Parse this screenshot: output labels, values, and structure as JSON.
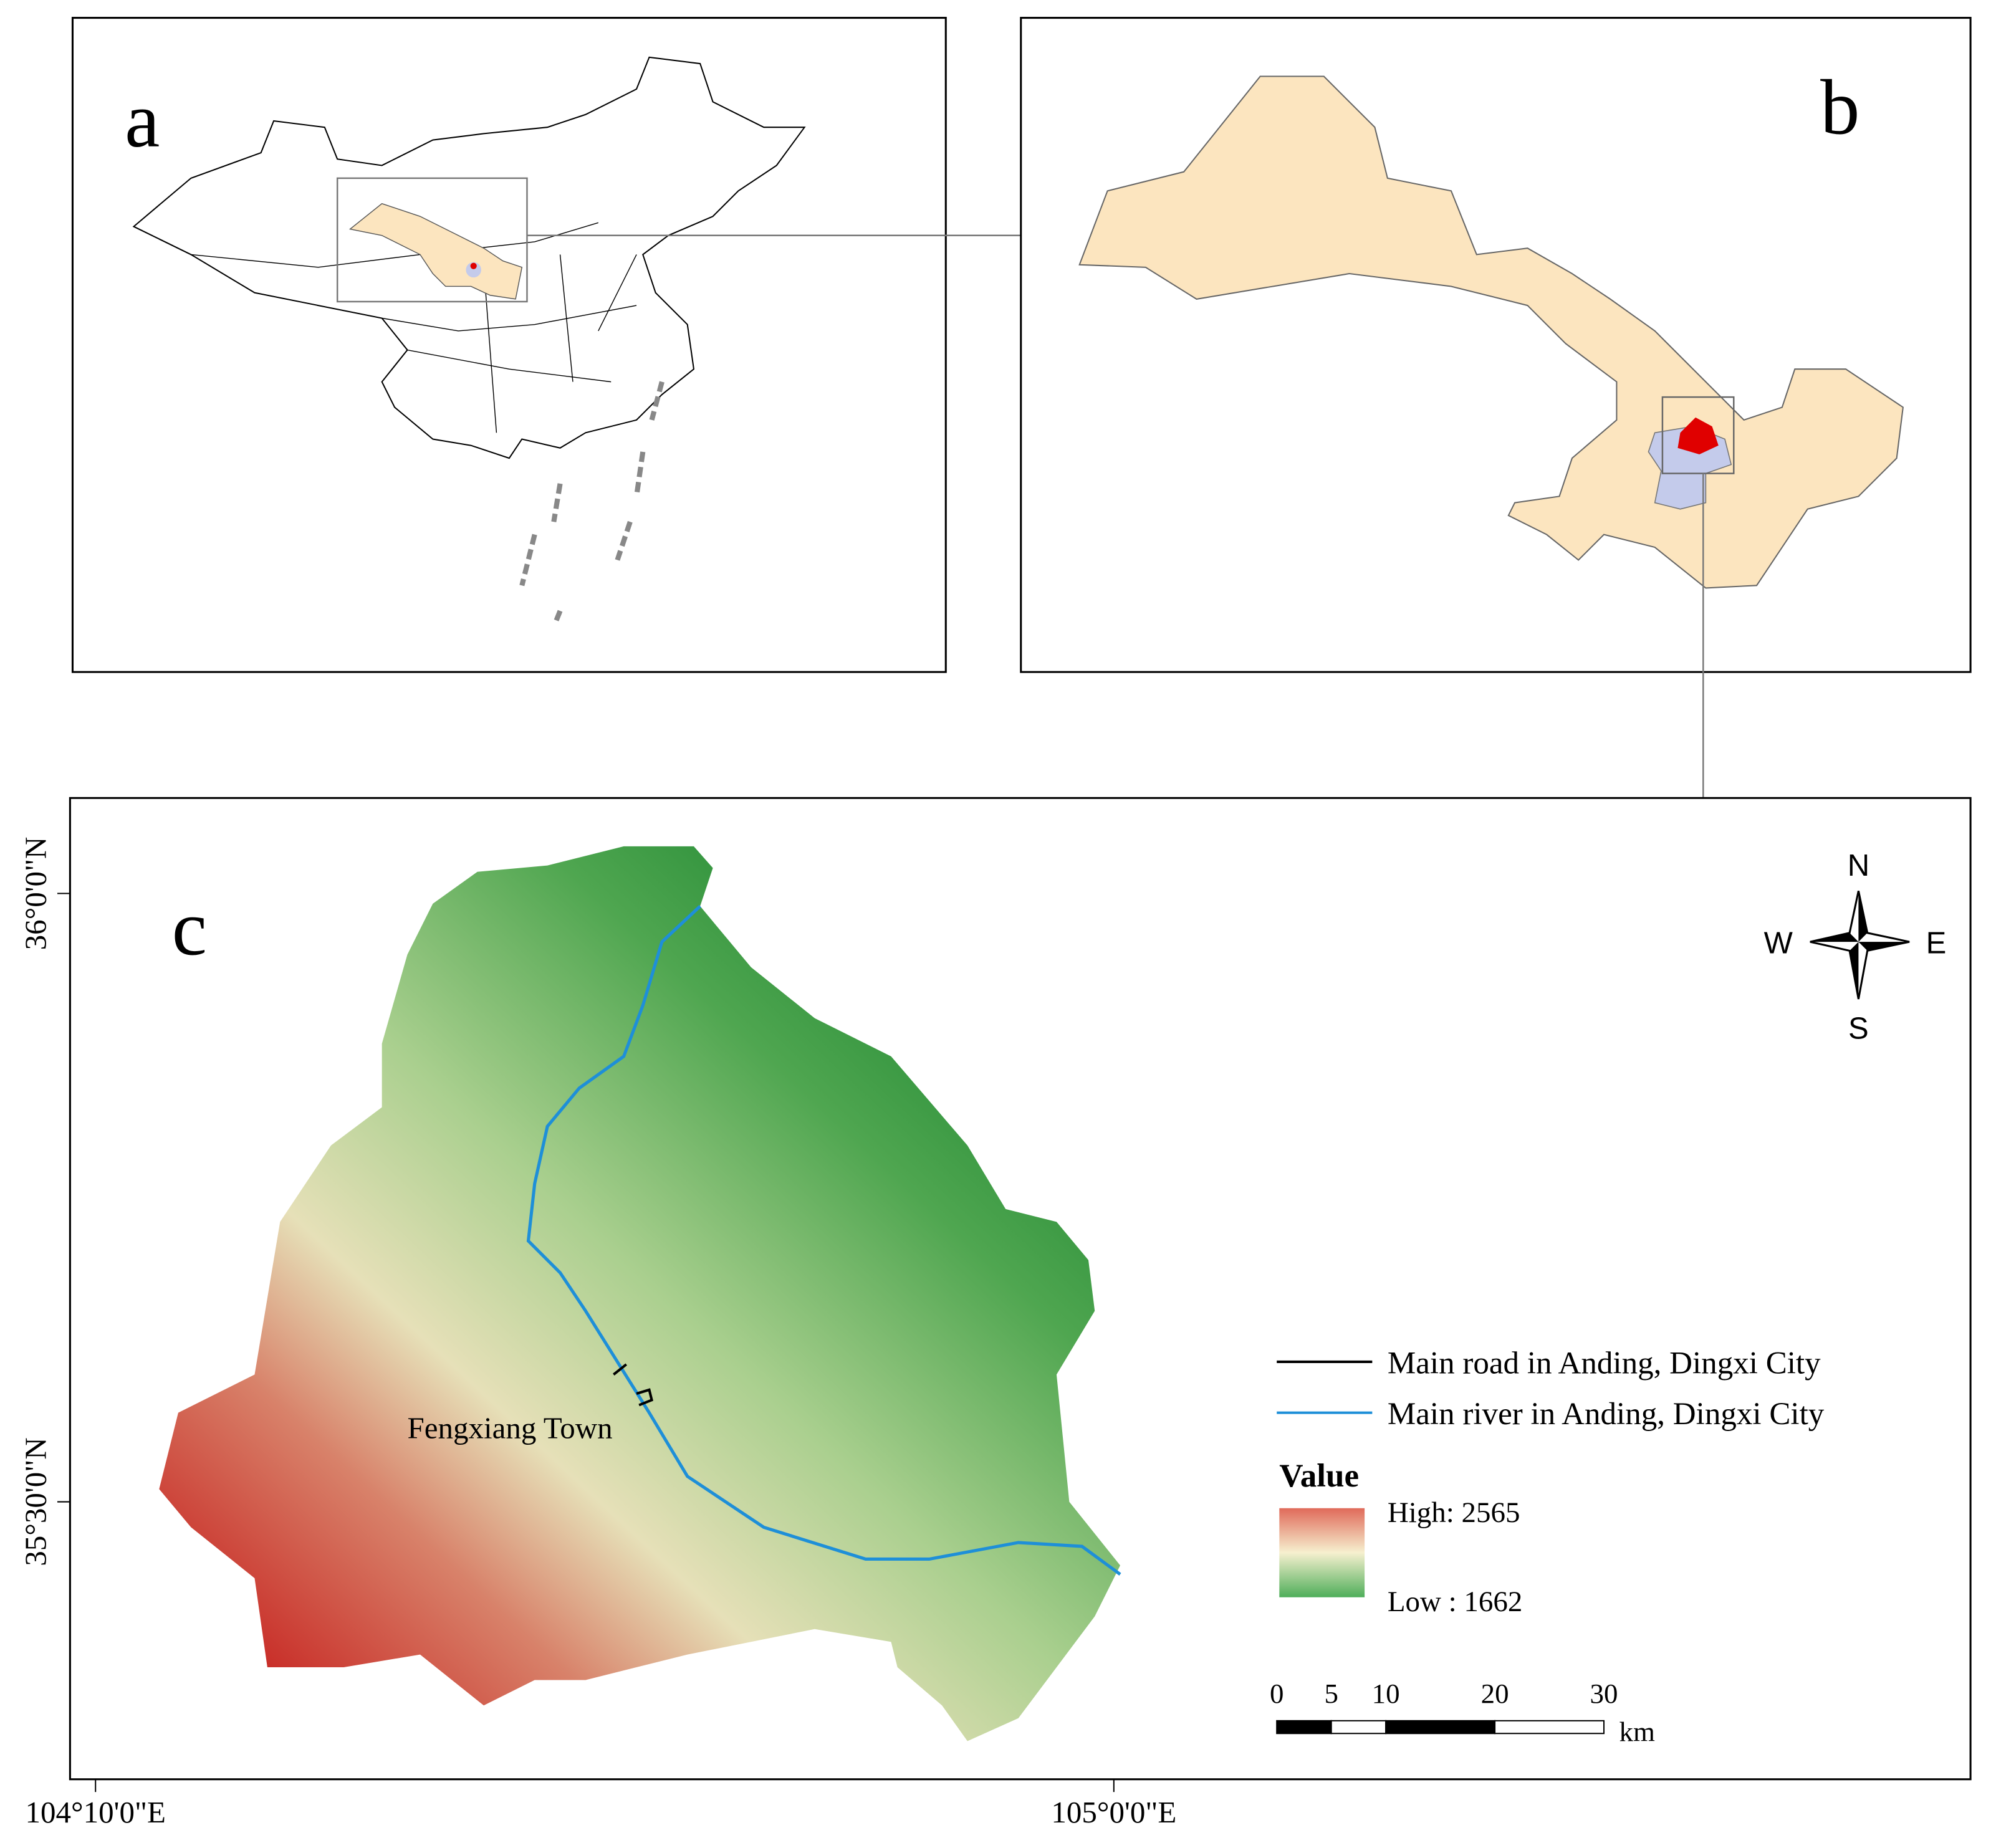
{
  "panels": {
    "a": {
      "label": "a"
    },
    "b": {
      "label": "b"
    },
    "c": {
      "label": "c",
      "latitude_labels": [
        "36°0'0\"N",
        "35°30'0\"N"
      ],
      "longitude_labels": [
        "104°10'0\"E",
        "105°0'0\"E"
      ],
      "town_label": "Fengxiang Town",
      "compass": {
        "n": "N",
        "s": "S",
        "w": "W",
        "e": "E"
      },
      "legend": {
        "road": "Main road in Anding, Dingxi City",
        "river": "Main river in Anding, Dingxi City",
        "value_title": "Value",
        "high": "High: 2565",
        "low": "Low : 1662"
      },
      "scale_bar": {
        "ticks": [
          0,
          5,
          10,
          20,
          30
        ],
        "unit": "km"
      }
    }
  }
}
